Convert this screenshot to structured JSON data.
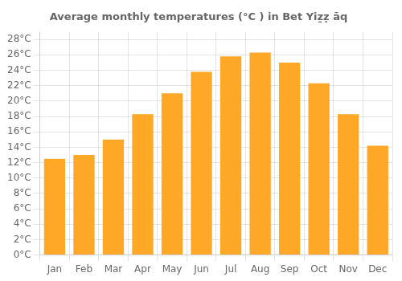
{
  "chart_data": {
    "type": "bar",
    "title": "Average monthly temperatures (°C ) in Bet Yiẕẓ āq",
    "categories": [
      "Jan",
      "Feb",
      "Mar",
      "Apr",
      "May",
      "Jun",
      "Jul",
      "Aug",
      "Sep",
      "Oct",
      "Nov",
      "Dec"
    ],
    "values": [
      12.5,
      13.0,
      15.0,
      18.3,
      21.0,
      23.8,
      25.8,
      26.3,
      25.0,
      22.3,
      18.3,
      14.2
    ],
    "color": "#FFA726",
    "ylim": [
      0,
      29
    ],
    "yticks": [
      {
        "value": 0,
        "label": "0°C"
      },
      {
        "value": 2,
        "label": "2°C"
      },
      {
        "value": 4,
        "label": "4°C"
      },
      {
        "value": 6,
        "label": "6°C"
      },
      {
        "value": 8,
        "label": "8°C"
      },
      {
        "value": 10,
        "label": "10°C"
      },
      {
        "value": 12,
        "label": "12°C"
      },
      {
        "value": 14,
        "label": "14°C"
      },
      {
        "value": 16,
        "label": "16°C"
      },
      {
        "value": 18,
        "label": "18°C"
      },
      {
        "value": 20,
        "label": "20°C"
      },
      {
        "value": 22,
        "label": "22°C"
      },
      {
        "value": 24,
        "label": "24°C"
      },
      {
        "value": 26,
        "label": "26°C"
      },
      {
        "value": 28,
        "label": "28°C"
      }
    ],
    "grid": true
  }
}
